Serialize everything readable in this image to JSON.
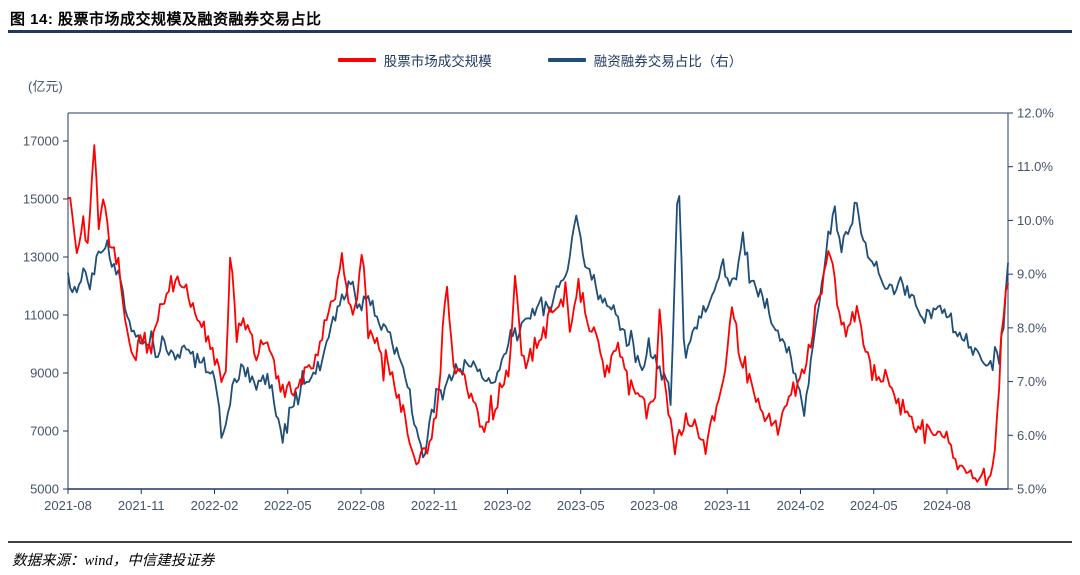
{
  "header": {
    "title": "图 14: 股票市场成交规模及融资融券交易占比"
  },
  "legend": [
    {
      "label": "股票市场成交规模",
      "color": "#ff0000"
    },
    {
      "label": "融资融券交易占比（右）",
      "color": "#1f4e79"
    }
  ],
  "footer": {
    "source": "数据来源：wind，中信建投证券"
  },
  "chart_data": {
    "type": "line",
    "title": "图 14: 股票市场成交规模及融资融券交易占比",
    "unit_label": "(亿元)",
    "grid": "off",
    "legend_position": "top-center",
    "x_axis": {
      "tick_labels": [
        "2021-08",
        "2021-11",
        "2022-02",
        "2022-05",
        "2022-08",
        "2022-11",
        "2023-02",
        "2023-05",
        "2023-08",
        "2023-11",
        "2024-02",
        "2024-05",
        "2024-08"
      ],
      "tick_interval_months": 3,
      "months_total": 38.5
    },
    "left_axis": {
      "label": "(亿元)",
      "min": 5000,
      "max": 17000,
      "step": 2000,
      "ticks": [
        17000,
        15000,
        13000,
        11000,
        9000,
        7000,
        5000
      ]
    },
    "right_axis": {
      "min": 5.0,
      "max": 12.0,
      "step": 1.0,
      "tick_labels": [
        "12.0%",
        "11.0%",
        "10.0%",
        "9.0%",
        "8.0%",
        "7.0%",
        "6.0%",
        "5.0%"
      ]
    },
    "series": [
      {
        "name": "股票市场成交规模",
        "axis": "left",
        "color": "#ff0000",
        "stroke_width": 1.8,
        "points": 430,
        "seed": 7,
        "noise": 420,
        "anchors": [
          [
            0.0,
            15200
          ],
          [
            0.15,
            14700
          ],
          [
            0.35,
            12900
          ],
          [
            0.6,
            14400
          ],
          [
            0.8,
            13300
          ],
          [
            1.0,
            15600
          ],
          [
            1.1,
            17100
          ],
          [
            1.25,
            14300
          ],
          [
            1.5,
            15000
          ],
          [
            1.7,
            13200
          ],
          [
            2.0,
            13000
          ],
          [
            2.3,
            11000
          ],
          [
            2.6,
            9600
          ],
          [
            3.0,
            10300
          ],
          [
            3.4,
            9900
          ],
          [
            3.8,
            11200
          ],
          [
            4.1,
            11900
          ],
          [
            4.5,
            12100
          ],
          [
            4.9,
            11700
          ],
          [
            5.3,
            10800
          ],
          [
            5.7,
            10300
          ],
          [
            6.1,
            9100
          ],
          [
            6.45,
            8600
          ],
          [
            6.65,
            13500
          ],
          [
            6.9,
            10200
          ],
          [
            7.3,
            10700
          ],
          [
            7.7,
            9700
          ],
          [
            8.1,
            10100
          ],
          [
            8.5,
            9000
          ],
          [
            8.9,
            8300
          ],
          [
            9.3,
            8200
          ],
          [
            9.7,
            8900
          ],
          [
            10.1,
            9400
          ],
          [
            10.5,
            10700
          ],
          [
            10.9,
            11600
          ],
          [
            11.25,
            13100
          ],
          [
            11.5,
            11500
          ],
          [
            11.8,
            11100
          ],
          [
            12.05,
            13200
          ],
          [
            12.3,
            10400
          ],
          [
            12.7,
            10100
          ],
          [
            13.1,
            9300
          ],
          [
            13.5,
            8300
          ],
          [
            13.9,
            7100
          ],
          [
            14.3,
            5800
          ],
          [
            14.6,
            6200
          ],
          [
            14.9,
            6700
          ],
          [
            15.2,
            8600
          ],
          [
            15.5,
            12200
          ],
          [
            15.8,
            9200
          ],
          [
            16.2,
            8800
          ],
          [
            16.6,
            8100
          ],
          [
            17.0,
            6900
          ],
          [
            17.4,
            7600
          ],
          [
            17.8,
            8600
          ],
          [
            18.1,
            9300
          ],
          [
            18.35,
            12400
          ],
          [
            18.6,
            9400
          ],
          [
            19.0,
            9600
          ],
          [
            19.4,
            10300
          ],
          [
            19.8,
            11100
          ],
          [
            20.2,
            11700
          ],
          [
            20.6,
            10600
          ],
          [
            20.9,
            11900
          ],
          [
            21.3,
            10700
          ],
          [
            21.7,
            9900
          ],
          [
            22.1,
            9200
          ],
          [
            22.5,
            9900
          ],
          [
            22.9,
            8800
          ],
          [
            23.3,
            8300
          ],
          [
            23.7,
            7900
          ],
          [
            24.05,
            8300
          ],
          [
            24.25,
            11200
          ],
          [
            24.5,
            8000
          ],
          [
            24.9,
            6600
          ],
          [
            25.3,
            7400
          ],
          [
            25.7,
            7000
          ],
          [
            26.1,
            6400
          ],
          [
            26.5,
            7600
          ],
          [
            26.9,
            8900
          ],
          [
            27.2,
            11400
          ],
          [
            27.5,
            9700
          ],
          [
            27.9,
            8700
          ],
          [
            28.3,
            7900
          ],
          [
            28.7,
            7500
          ],
          [
            29.1,
            7000
          ],
          [
            29.5,
            7800
          ],
          [
            29.9,
            8700
          ],
          [
            30.2,
            9100
          ],
          [
            30.6,
            11000
          ],
          [
            31.0,
            12600
          ],
          [
            31.2,
            13400
          ],
          [
            31.5,
            11300
          ],
          [
            31.9,
            10300
          ],
          [
            32.3,
            11500
          ],
          [
            32.7,
            9600
          ],
          [
            33.1,
            8700
          ],
          [
            33.5,
            9000
          ],
          [
            33.9,
            8100
          ],
          [
            34.3,
            7600
          ],
          [
            34.7,
            7300
          ],
          [
            35.1,
            7100
          ],
          [
            35.5,
            6900
          ],
          [
            35.9,
            6700
          ],
          [
            36.3,
            6300
          ],
          [
            36.7,
            5900
          ],
          [
            37.1,
            5600
          ],
          [
            37.5,
            5300
          ],
          [
            37.8,
            5400
          ],
          [
            38.0,
            6500
          ],
          [
            38.2,
            9800
          ],
          [
            38.5,
            11900
          ]
        ]
      },
      {
        "name": "融资融券交易占比（右）",
        "axis": "right",
        "color": "#1f4e79",
        "stroke_width": 1.8,
        "points": 430,
        "seed": 13,
        "noise": 0.18,
        "anchors": [
          [
            0.0,
            9.0
          ],
          [
            0.3,
            8.6
          ],
          [
            0.6,
            9.1
          ],
          [
            0.9,
            8.8
          ],
          [
            1.2,
            9.4
          ],
          [
            1.5,
            9.6
          ],
          [
            1.8,
            9.2
          ],
          [
            2.1,
            8.9
          ],
          [
            2.4,
            8.3
          ],
          [
            2.8,
            7.9
          ],
          [
            3.2,
            7.7
          ],
          [
            3.6,
            7.5
          ],
          [
            4.0,
            7.7
          ],
          [
            4.4,
            7.4
          ],
          [
            4.8,
            7.6
          ],
          [
            5.2,
            7.4
          ],
          [
            5.6,
            7.3
          ],
          [
            6.0,
            7.0
          ],
          [
            6.35,
            6.1
          ],
          [
            6.6,
            6.6
          ],
          [
            6.9,
            7.0
          ],
          [
            7.3,
            7.3
          ],
          [
            7.7,
            6.9
          ],
          [
            8.1,
            7.1
          ],
          [
            8.5,
            6.6
          ],
          [
            8.8,
            5.9
          ],
          [
            9.1,
            6.5
          ],
          [
            9.5,
            6.8
          ],
          [
            9.9,
            7.1
          ],
          [
            10.3,
            7.3
          ],
          [
            10.7,
            7.9
          ],
          [
            11.1,
            8.4
          ],
          [
            11.5,
            8.9
          ],
          [
            11.9,
            8.4
          ],
          [
            12.3,
            8.6
          ],
          [
            12.7,
            8.2
          ],
          [
            13.1,
            7.9
          ],
          [
            13.5,
            7.5
          ],
          [
            13.9,
            7.0
          ],
          [
            14.3,
            6.1
          ],
          [
            14.55,
            5.6
          ],
          [
            14.9,
            6.4
          ],
          [
            15.3,
            6.8
          ],
          [
            15.7,
            7.1
          ],
          [
            16.1,
            7.2
          ],
          [
            16.5,
            7.4
          ],
          [
            16.9,
            7.1
          ],
          [
            17.3,
            6.9
          ],
          [
            17.7,
            7.4
          ],
          [
            18.1,
            7.8
          ],
          [
            18.5,
            8.0
          ],
          [
            18.9,
            8.2
          ],
          [
            19.3,
            8.4
          ],
          [
            19.7,
            8.3
          ],
          [
            20.1,
            8.7
          ],
          [
            20.5,
            9.1
          ],
          [
            20.85,
            10.2
          ],
          [
            21.1,
            9.3
          ],
          [
            21.5,
            8.9
          ],
          [
            21.9,
            8.5
          ],
          [
            22.3,
            8.3
          ],
          [
            22.7,
            7.9
          ],
          [
            23.1,
            7.7
          ],
          [
            23.5,
            7.3
          ],
          [
            23.9,
            7.5
          ],
          [
            24.3,
            7.2
          ],
          [
            24.7,
            6.9
          ],
          [
            25.0,
            11.05
          ],
          [
            25.25,
            7.4
          ],
          [
            25.6,
            7.9
          ],
          [
            26.0,
            8.3
          ],
          [
            26.4,
            8.6
          ],
          [
            26.8,
            9.2
          ],
          [
            27.1,
            8.7
          ],
          [
            27.4,
            9.0
          ],
          [
            27.65,
            9.7
          ],
          [
            27.9,
            9.0
          ],
          [
            28.3,
            8.6
          ],
          [
            28.7,
            8.3
          ],
          [
            29.1,
            7.9
          ],
          [
            29.5,
            7.6
          ],
          [
            29.9,
            6.9
          ],
          [
            30.15,
            6.3
          ],
          [
            30.5,
            7.7
          ],
          [
            30.8,
            8.6
          ],
          [
            31.1,
            9.6
          ],
          [
            31.4,
            10.1
          ],
          [
            31.7,
            9.5
          ],
          [
            32.0,
            9.8
          ],
          [
            32.3,
            10.35
          ],
          [
            32.6,
            9.6
          ],
          [
            32.9,
            9.2
          ],
          [
            33.3,
            9.0
          ],
          [
            33.7,
            8.7
          ],
          [
            34.1,
            8.9
          ],
          [
            34.5,
            8.6
          ],
          [
            34.9,
            8.3
          ],
          [
            35.3,
            8.2
          ],
          [
            35.7,
            8.5
          ],
          [
            36.1,
            8.1
          ],
          [
            36.5,
            7.9
          ],
          [
            36.9,
            7.7
          ],
          [
            37.3,
            7.4
          ],
          [
            37.7,
            7.2
          ],
          [
            38.0,
            7.5
          ],
          [
            38.3,
            8.0
          ],
          [
            38.5,
            9.2
          ]
        ]
      }
    ]
  }
}
